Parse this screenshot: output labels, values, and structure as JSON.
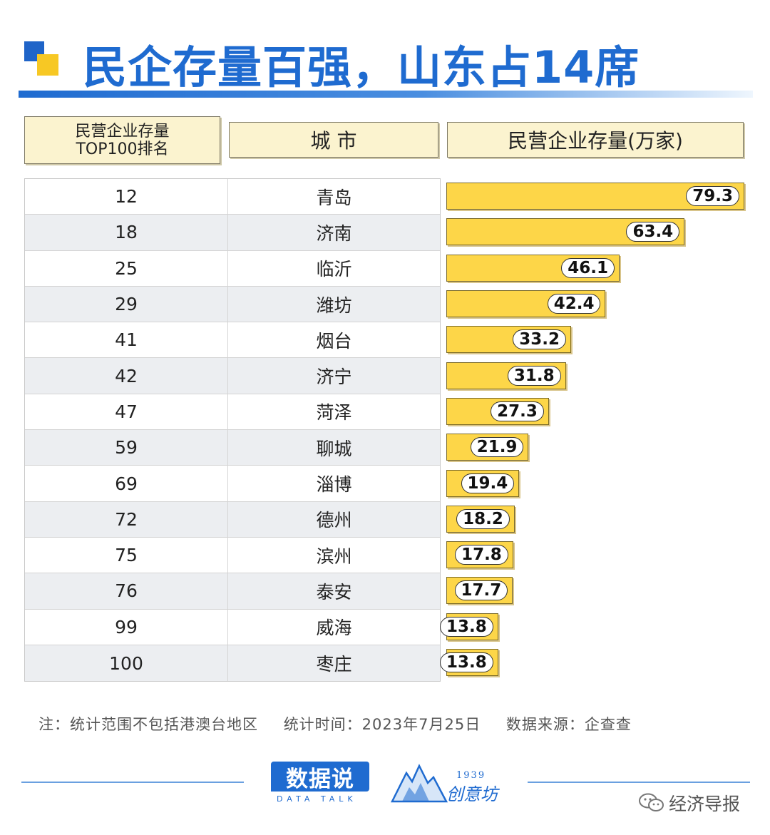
{
  "title": "民企存量百强，山东占14席",
  "headers": {
    "rank_line1": "民营企业存量",
    "rank_line2": "TOP100排名",
    "city": "城 市",
    "value": "民营企业存量(万家)"
  },
  "colors": {
    "accent": "#1f6bd0",
    "bar": "#fdd648",
    "header_bg": "#fbf3cf"
  },
  "chart_data": {
    "type": "bar",
    "orientation": "horizontal",
    "title": "民企存量百强，山东占14席",
    "ylabel": "民营企业存量(万家)",
    "ranks": [
      "12",
      "18",
      "25",
      "29",
      "41",
      "42",
      "47",
      "59",
      "69",
      "72",
      "75",
      "76",
      "99",
      "100"
    ],
    "categories": [
      "青岛",
      "济南",
      "临沂",
      "潍坊",
      "烟台",
      "济宁",
      "菏泽",
      "聊城",
      "淄博",
      "德州",
      "滨州",
      "泰安",
      "威海",
      "枣庄"
    ],
    "values": [
      79.3,
      63.4,
      46.1,
      42.4,
      33.2,
      31.8,
      27.3,
      21.9,
      19.4,
      18.2,
      17.8,
      17.7,
      13.8,
      13.8
    ],
    "value_labels": [
      "79.3",
      "63.4",
      "46.1",
      "42.4",
      "33.2",
      "31.8",
      "27.3",
      "21.9",
      "19.4",
      "18.2",
      "17.8",
      "17.7",
      "13.8",
      "13.8"
    ],
    "xlim": [
      0,
      79.3
    ]
  },
  "footer": {
    "note_scope": "注：统计范围不包括港澳台地区",
    "note_time": "统计时间：2023年7月25日",
    "note_source": "数据来源：企查查",
    "logo_main": "数据说",
    "logo_sub": "DATA TALK",
    "logo2_year": "1939",
    "logo2_name": "创意坊",
    "wechat_name": "经济导报"
  }
}
